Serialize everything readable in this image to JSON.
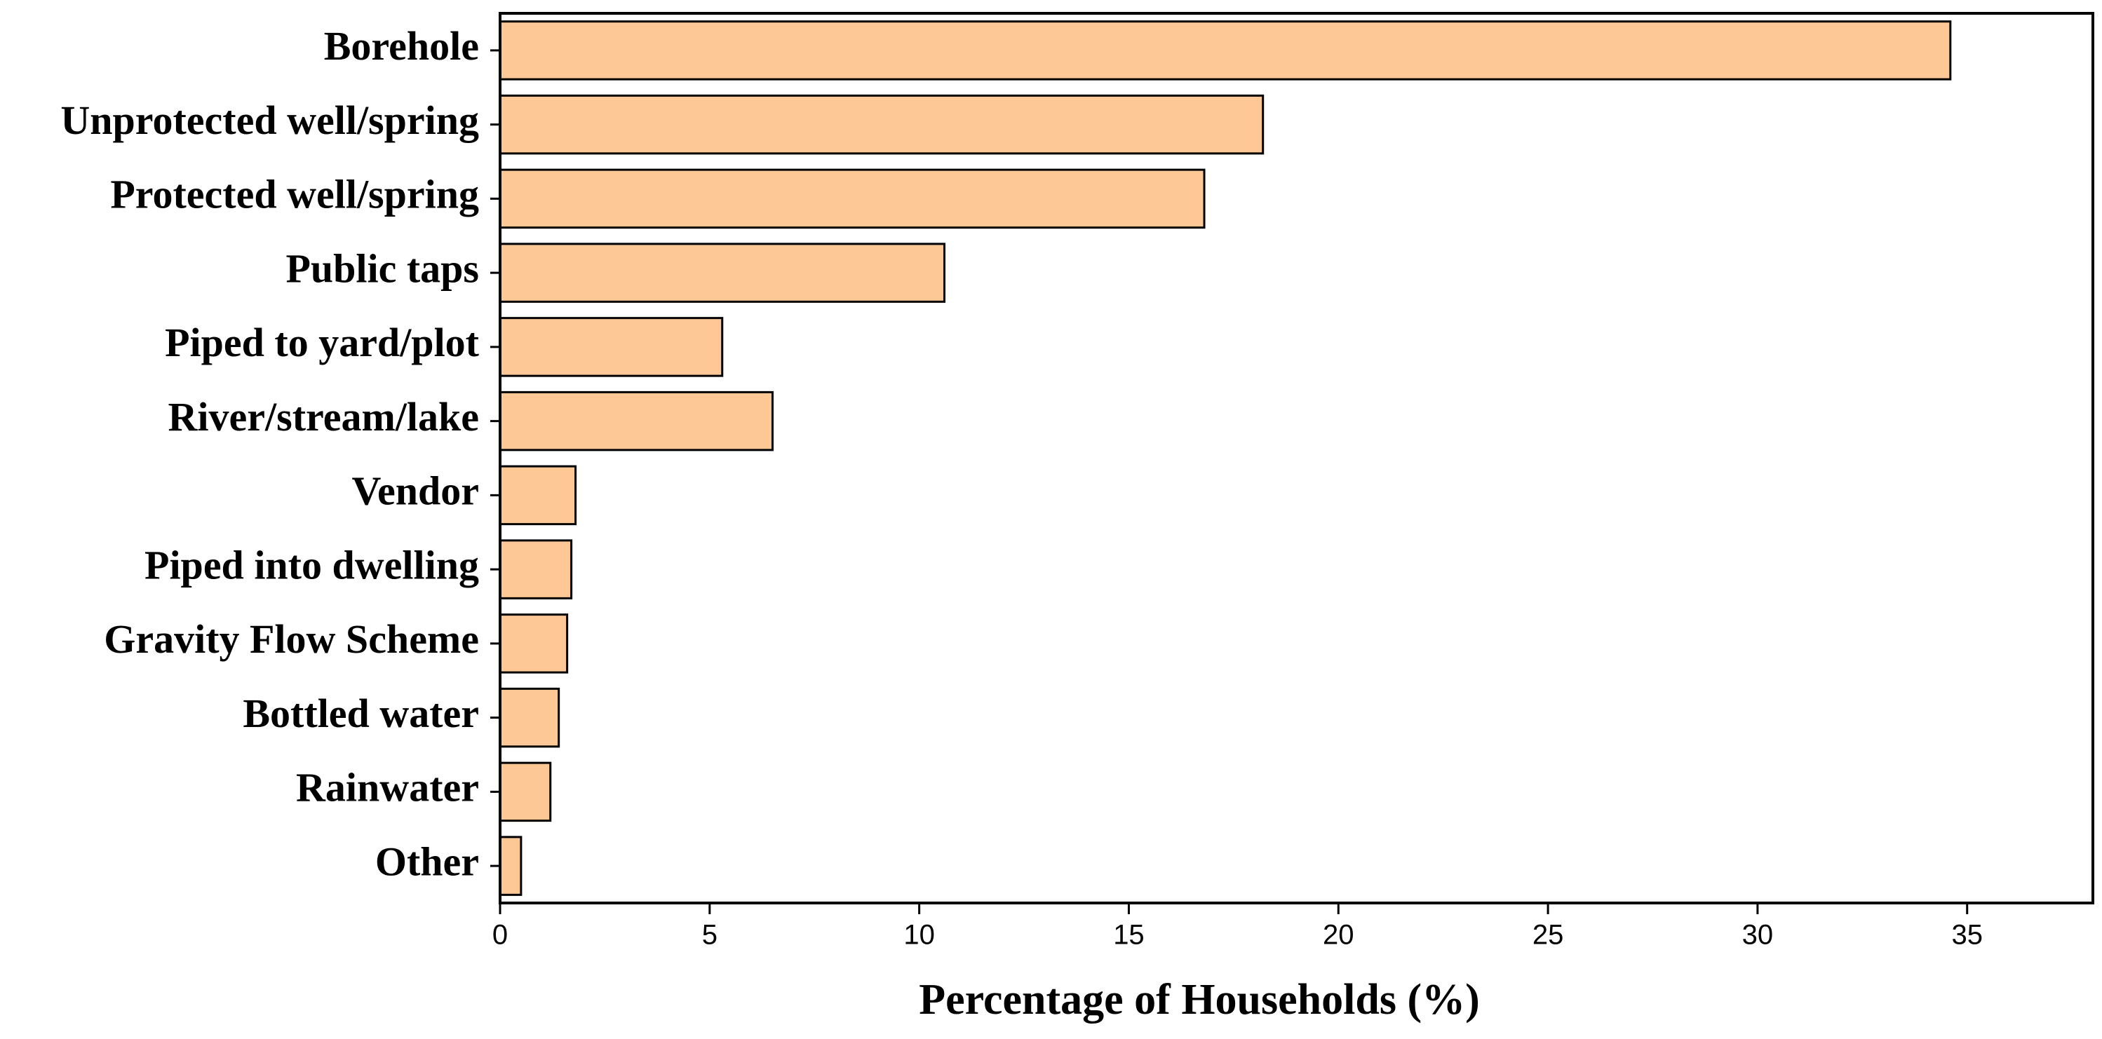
{
  "chart_data": {
    "type": "bar",
    "orientation": "horizontal",
    "categories": [
      "Borehole",
      "Unprotected well/spring",
      "Protected well/spring",
      "Public taps",
      "Piped to yard/plot",
      "River/stream/lake",
      "Vendor",
      "Piped into dwelling",
      "Gravity Flow Scheme",
      "Bottled water",
      "Rainwater",
      "Other"
    ],
    "values": [
      34.6,
      18.2,
      16.8,
      10.6,
      5.3,
      6.5,
      1.8,
      1.7,
      1.6,
      1.4,
      1.2,
      0.5
    ],
    "color": "#fdc895",
    "x_label": "Percentage of Households (%)",
    "xlim": [
      0,
      38
    ],
    "xticks": [
      0,
      5,
      10,
      15,
      20,
      25,
      30,
      35
    ],
    "grid": false
  }
}
